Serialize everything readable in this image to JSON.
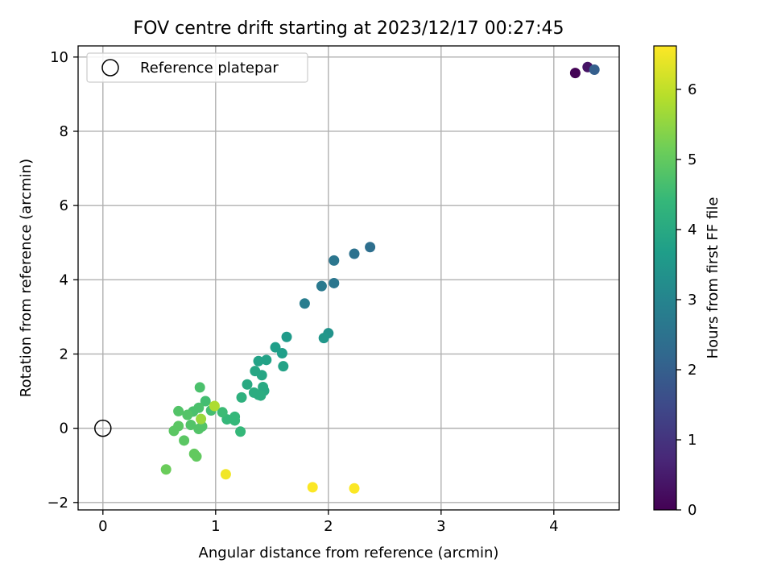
{
  "chart_data": {
    "type": "scatter",
    "title": "FOV centre drift starting at 2023/12/17 00:27:45",
    "xlabel": "Angular distance from reference (arcmin)",
    "ylabel": "Rotation from reference (arcmin)",
    "xlim": [
      -0.22,
      4.58
    ],
    "ylim": [
      -2.2,
      10.3
    ],
    "xticks": [
      0,
      1,
      2,
      3,
      4
    ],
    "yticks": [
      -2,
      0,
      2,
      4,
      6,
      8,
      10
    ],
    "grid": true,
    "legend": {
      "placement": "top-left",
      "entries": [
        "Reference platepar"
      ]
    },
    "reference_point": {
      "x": 0,
      "y": 0
    },
    "colorbar": {
      "label": "Hours from first FF file",
      "colormap": "viridis",
      "range": [
        0,
        6.62
      ],
      "ticks": [
        0,
        1,
        2,
        3,
        4,
        5,
        6
      ]
    },
    "colormap_stops": [
      "#440154",
      "#482878",
      "#3e4989",
      "#31688e",
      "#26828e",
      "#1f9e89",
      "#35b779",
      "#6ece58",
      "#b5de2b",
      "#fde725"
    ],
    "points": [
      {
        "x": 4.19,
        "y": 9.57,
        "c": 0.05
      },
      {
        "x": 4.3,
        "y": 9.73,
        "c": 0.35
      },
      {
        "x": 4.36,
        "y": 9.66,
        "c": 2.0
      },
      {
        "x": 2.37,
        "y": 4.88,
        "c": 2.4
      },
      {
        "x": 2.23,
        "y": 4.7,
        "c": 2.5
      },
      {
        "x": 2.05,
        "y": 4.52,
        "c": 2.6
      },
      {
        "x": 2.05,
        "y": 3.91,
        "c": 2.6
      },
      {
        "x": 1.94,
        "y": 3.83,
        "c": 2.7
      },
      {
        "x": 1.79,
        "y": 3.36,
        "c": 2.8
      },
      {
        "x": 2.0,
        "y": 2.56,
        "c": 3.4
      },
      {
        "x": 1.96,
        "y": 2.43,
        "c": 3.5
      },
      {
        "x": 1.63,
        "y": 2.46,
        "c": 3.6
      },
      {
        "x": 1.53,
        "y": 2.18,
        "c": 3.7
      },
      {
        "x": 1.59,
        "y": 2.02,
        "c": 3.7
      },
      {
        "x": 1.6,
        "y": 1.67,
        "c": 3.8
      },
      {
        "x": 1.45,
        "y": 1.84,
        "c": 3.8
      },
      {
        "x": 1.38,
        "y": 1.81,
        "c": 3.8
      },
      {
        "x": 1.35,
        "y": 1.54,
        "c": 3.9
      },
      {
        "x": 1.41,
        "y": 1.43,
        "c": 3.9
      },
      {
        "x": 1.28,
        "y": 1.18,
        "c": 4.0
      },
      {
        "x": 1.42,
        "y": 1.11,
        "c": 4.0
      },
      {
        "x": 1.43,
        "y": 1.01,
        "c": 4.0
      },
      {
        "x": 1.34,
        "y": 0.96,
        "c": 4.1
      },
      {
        "x": 1.38,
        "y": 0.9,
        "c": 4.1
      },
      {
        "x": 1.4,
        "y": 0.88,
        "c": 4.1
      },
      {
        "x": 1.23,
        "y": 0.83,
        "c": 4.2
      },
      {
        "x": 1.17,
        "y": 0.31,
        "c": 4.4
      },
      {
        "x": 1.17,
        "y": 0.21,
        "c": 4.4
      },
      {
        "x": 1.1,
        "y": 0.24,
        "c": 4.4
      },
      {
        "x": 1.06,
        "y": 0.43,
        "c": 4.5
      },
      {
        "x": 1.22,
        "y": -0.09,
        "c": 4.4
      },
      {
        "x": 0.96,
        "y": 0.48,
        "c": 4.6
      },
      {
        "x": 0.91,
        "y": 0.73,
        "c": 4.6
      },
      {
        "x": 0.86,
        "y": 1.1,
        "c": 4.7
      },
      {
        "x": 0.85,
        "y": 0.55,
        "c": 4.7
      },
      {
        "x": 0.8,
        "y": 0.45,
        "c": 4.7
      },
      {
        "x": 0.75,
        "y": 0.36,
        "c": 4.8
      },
      {
        "x": 0.67,
        "y": 0.46,
        "c": 4.8
      },
      {
        "x": 0.78,
        "y": 0.09,
        "c": 4.8
      },
      {
        "x": 0.88,
        "y": 0.05,
        "c": 4.8
      },
      {
        "x": 0.85,
        "y": -0.02,
        "c": 4.8
      },
      {
        "x": 0.67,
        "y": 0.06,
        "c": 4.9
      },
      {
        "x": 0.63,
        "y": -0.07,
        "c": 4.9
      },
      {
        "x": 0.72,
        "y": -0.33,
        "c": 4.9
      },
      {
        "x": 0.81,
        "y": -0.69,
        "c": 5.0
      },
      {
        "x": 0.83,
        "y": -0.76,
        "c": 5.0
      },
      {
        "x": 0.56,
        "y": -1.11,
        "c": 5.1
      },
      {
        "x": 0.87,
        "y": 0.25,
        "c": 5.6
      },
      {
        "x": 0.99,
        "y": 0.6,
        "c": 5.8
      },
      {
        "x": 1.09,
        "y": -1.24,
        "c": 6.5
      },
      {
        "x": 1.86,
        "y": -1.59,
        "c": 6.6
      },
      {
        "x": 2.23,
        "y": -1.62,
        "c": 6.6
      }
    ]
  }
}
